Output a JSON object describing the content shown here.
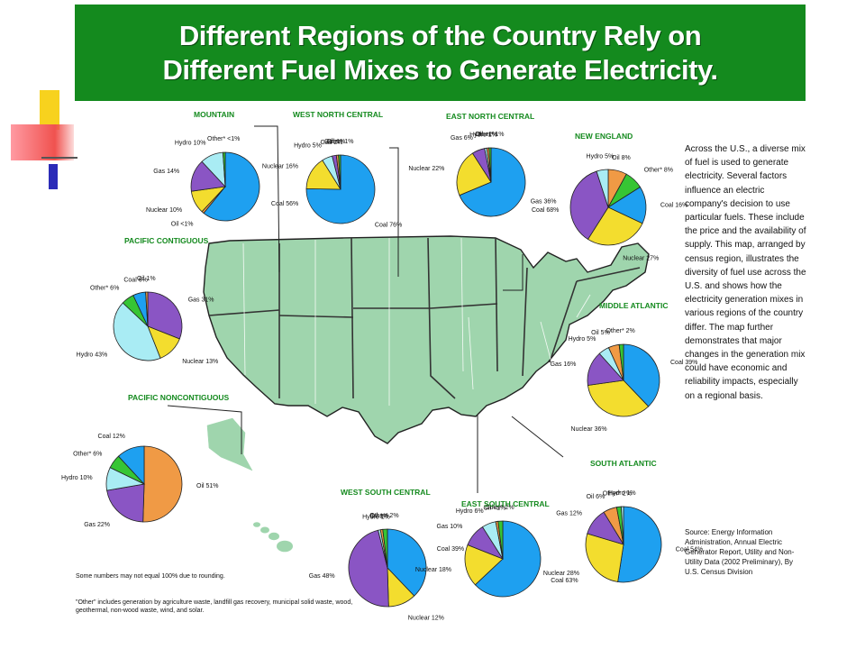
{
  "slide": {
    "title_line1": "Different Regions of the Country Rely on",
    "title_line2": "Different Fuel Mixes to Generate Electricity."
  },
  "description": "Across the U.S., a diverse mix of fuel is used to generate electricity. Several factors influence an electric company's decision to use particular fuels. These include the price and the availability of supply. This map, arranged by census region, illustrates the diversity of fuel use across the U.S. and shows how the electricity generation mixes in various regions of the country differ. The map further demonstrates that major changes in the generation mix could have economic and reliability impacts, especially on a regional basis.",
  "source": "Source: Energy Information Administration, Annual Electric Generator Report, Utility and Non-Utility Data (2002 Preliminary), By U.S. Census Division",
  "footnote_rounding": "Some numbers may not equal 100% due to rounding.",
  "footnote_other": "\"Other\" includes generation by agriculture waste, landfill gas recovery, municipal solid waste, wood, geothermal, non-wood waste, wind, and solar.",
  "colors": {
    "title_bg": "#148a1e",
    "map_fill": "#9fd5ad",
    "Coal": "#1ea0f0",
    "Nuclear": "#f3dd2e",
    "Gas": "#8a55c4",
    "Hydro": "#a9ecf4",
    "Oil": "#f09a45",
    "Other": "#36c534"
  },
  "chart_data": [
    {
      "type": "pie",
      "title": "MOUNTAIN",
      "slices": [
        {
          "label": "Coal",
          "value": 56,
          "text": "Coal 56%"
        },
        {
          "label": "Oil",
          "value": 1,
          "text": "Oil <1%"
        },
        {
          "label": "Nuclear",
          "value": 10,
          "text": "Nuclear 10%"
        },
        {
          "label": "Gas",
          "value": 14,
          "text": "Gas 14%"
        },
        {
          "label": "Hydro",
          "value": 10,
          "text": "Hydro 10%"
        },
        {
          "label": "Other",
          "value": 1,
          "text": "Other* <1%"
        }
      ]
    },
    {
      "type": "pie",
      "title": "WEST NORTH CENTRAL",
      "slices": [
        {
          "label": "Coal",
          "value": 76,
          "text": "Coal 76%"
        },
        {
          "label": "Nuclear",
          "value": 16,
          "text": "Nuclear 16%"
        },
        {
          "label": "Hydro",
          "value": 5,
          "text": "Hydro 5%"
        },
        {
          "label": "Gas",
          "value": 2,
          "text": "Gas 2%"
        },
        {
          "label": "Oil",
          "value": 1,
          "text": "Oil 1%"
        },
        {
          "label": "Other",
          "value": 1,
          "text": "Other* 1%"
        }
      ]
    },
    {
      "type": "pie",
      "title": "EAST NORTH CENTRAL",
      "slices": [
        {
          "label": "Coal",
          "value": 68,
          "text": "Coal 68%"
        },
        {
          "label": "Nuclear",
          "value": 22,
          "text": "Nuclear 22%"
        },
        {
          "label": "Gas",
          "value": 6,
          "text": "Gas 6%"
        },
        {
          "label": "Hydro",
          "value": 1,
          "text": "Hydro 1%"
        },
        {
          "label": "Oil",
          "value": 1,
          "text": "Oil <1%"
        },
        {
          "label": "Other",
          "value": 1,
          "text": "Other* 1%"
        }
      ]
    },
    {
      "type": "pie",
      "title": "NEW ENGLAND",
      "slices": [
        {
          "label": "Oil",
          "value": 8,
          "text": "Oil 8%"
        },
        {
          "label": "Other",
          "value": 8,
          "text": "Other* 8%"
        },
        {
          "label": "Coal",
          "value": 16,
          "text": "Coal 16%"
        },
        {
          "label": "Nuclear",
          "value": 27,
          "text": "Nuclear 27%"
        },
        {
          "label": "Gas",
          "value": 36,
          "text": "Gas 36%"
        },
        {
          "label": "Hydro",
          "value": 5,
          "text": "Hydro 5%"
        }
      ]
    },
    {
      "type": "pie",
      "title": "PACIFIC CONTIGUOUS",
      "slices": [
        {
          "label": "Gas",
          "value": 31,
          "text": "Gas 31%"
        },
        {
          "label": "Nuclear",
          "value": 13,
          "text": "Nuclear 13%"
        },
        {
          "label": "Hydro",
          "value": 43,
          "text": "Hydro 43%"
        },
        {
          "label": "Other",
          "value": 6,
          "text": "Other* 6%"
        },
        {
          "label": "Coal",
          "value": 6,
          "text": "Coal 6%"
        },
        {
          "label": "Oil",
          "value": 1,
          "text": "Oil 1%"
        }
      ]
    },
    {
      "type": "pie",
      "title": "MIDDLE ATLANTIC",
      "slices": [
        {
          "label": "Coal",
          "value": 39,
          "text": "Coal 39%"
        },
        {
          "label": "Nuclear",
          "value": 36,
          "text": "Nuclear 36%"
        },
        {
          "label": "Gas",
          "value": 16,
          "text": "Gas 16%"
        },
        {
          "label": "Hydro",
          "value": 5,
          "text": "Hydro 5%"
        },
        {
          "label": "Oil",
          "value": 5,
          "text": "Oil 5%"
        },
        {
          "label": "Other",
          "value": 2,
          "text": "Other* 2%"
        }
      ]
    },
    {
      "type": "pie",
      "title": "PACIFIC NONCONTIGUOUS",
      "slices": [
        {
          "label": "Oil",
          "value": 51,
          "text": "Oil 51%"
        },
        {
          "label": "Gas",
          "value": 22,
          "text": "Gas 22%"
        },
        {
          "label": "Hydro",
          "value": 10,
          "text": "Hydro 10%"
        },
        {
          "label": "Other",
          "value": 6,
          "text": "Other* 6%"
        },
        {
          "label": "Coal",
          "value": 12,
          "text": "Coal 12%"
        }
      ]
    },
    {
      "type": "pie",
      "title": "WEST SOUTH CENTRAL",
      "slices": [
        {
          "label": "Coal",
          "value": 39,
          "text": "Coal 39%"
        },
        {
          "label": "Nuclear",
          "value": 12,
          "text": "Nuclear 12%"
        },
        {
          "label": "Gas",
          "value": 48,
          "text": "Gas 48%"
        },
        {
          "label": "Hydro",
          "value": 1,
          "text": "Hydro 1%"
        },
        {
          "label": "Oil",
          "value": 1,
          "text": "Oil 1%"
        },
        {
          "label": "Other",
          "value": 2,
          "text": "Other* 2%"
        }
      ]
    },
    {
      "type": "pie",
      "title": "EAST SOUTH CENTRAL",
      "slices": [
        {
          "label": "Coal",
          "value": 63,
          "text": "Coal 63%"
        },
        {
          "label": "Nuclear",
          "value": 18,
          "text": "Nuclear 18%"
        },
        {
          "label": "Gas",
          "value": 10,
          "text": "Gas 10%"
        },
        {
          "label": "Hydro",
          "value": 6,
          "text": "Hydro 6%"
        },
        {
          "label": "Oil",
          "value": 1,
          "text": "Oil <1%"
        },
        {
          "label": "Other",
          "value": 2,
          "text": "Other* 2%"
        }
      ]
    },
    {
      "type": "pie",
      "title": "SOUTH ATLANTIC",
      "slices": [
        {
          "label": "Coal",
          "value": 54,
          "text": "Coal 54%"
        },
        {
          "label": "Nuclear",
          "value": 28,
          "text": "Nuclear 28%"
        },
        {
          "label": "Gas",
          "value": 12,
          "text": "Gas 12%"
        },
        {
          "label": "Oil",
          "value": 6,
          "text": "Oil 6%"
        },
        {
          "label": "Other",
          "value": 2,
          "text": "Other* 2%"
        },
        {
          "label": "Hydro",
          "value": 1,
          "text": "Hydro 1%"
        }
      ]
    }
  ]
}
